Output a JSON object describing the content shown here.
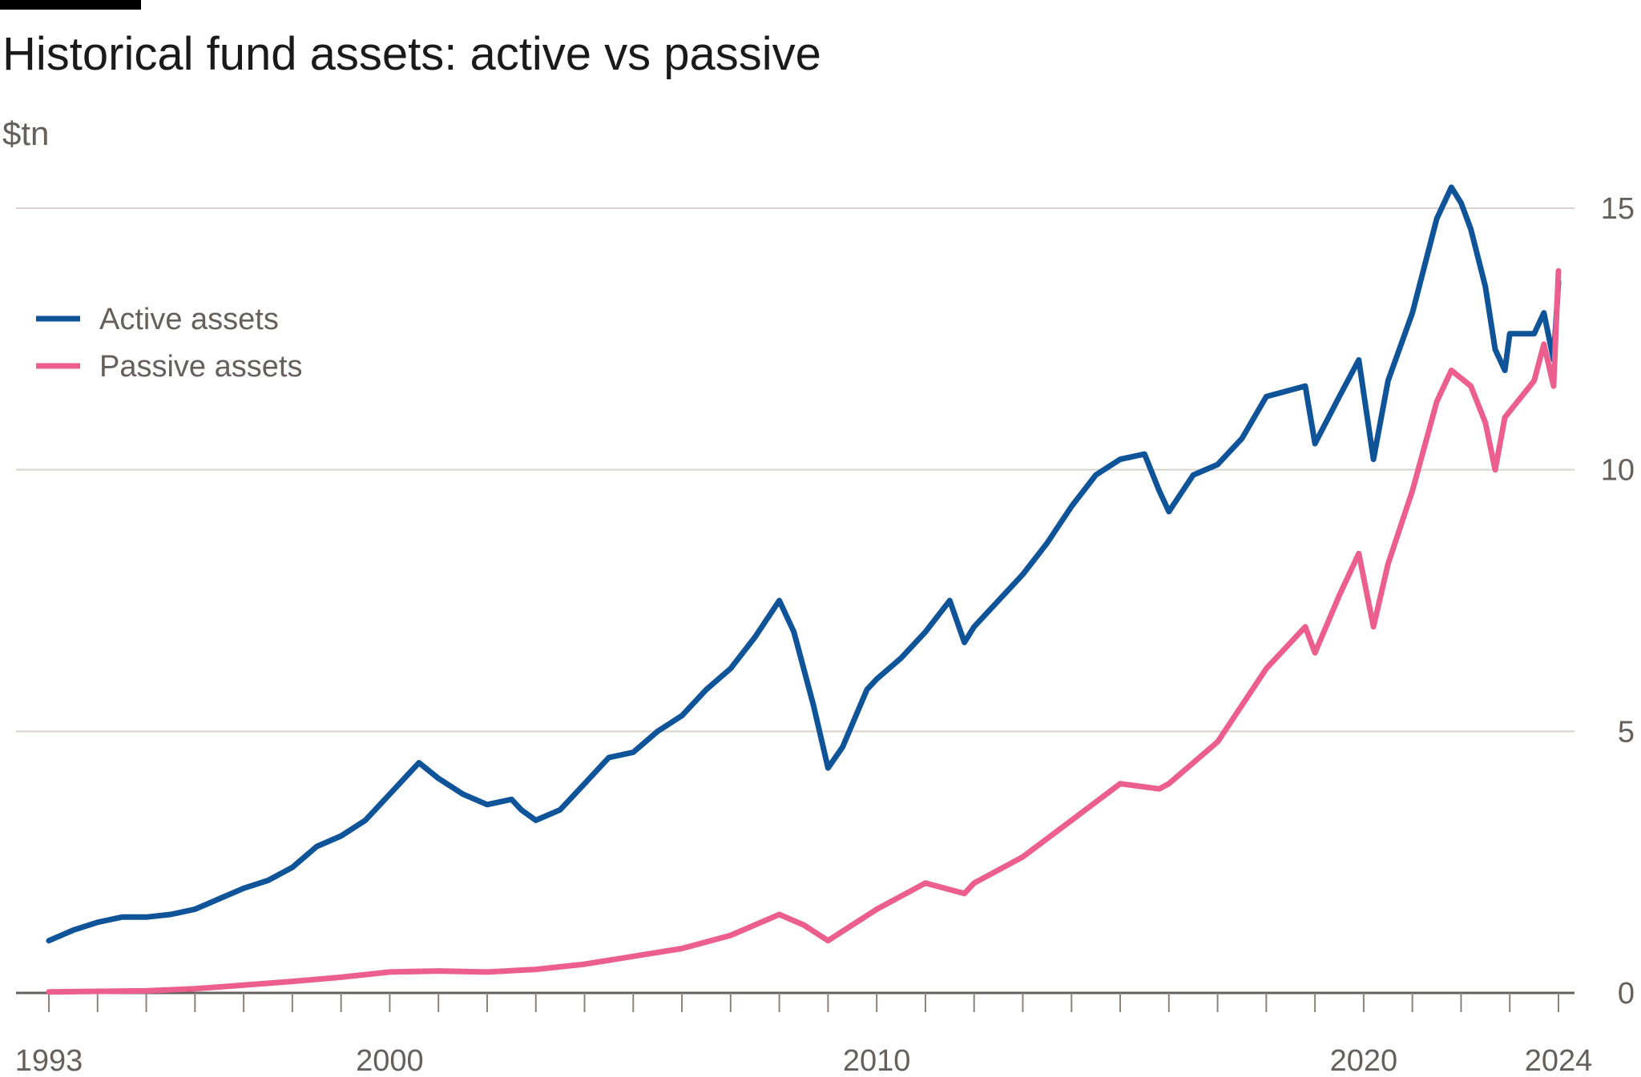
{
  "chart_data": {
    "type": "line",
    "title": "Historical fund assets: active vs passive",
    "ylabel": "$tn",
    "xlim": [
      1993,
      2024
    ],
    "ylim": [
      0,
      15
    ],
    "x_ticks_labeled": [
      "1993",
      "2000",
      "2010",
      "2020",
      "2024"
    ],
    "y_ticks": [
      0,
      5,
      10,
      15
    ],
    "grid": "horizontal",
    "legend_position": "top-left",
    "series": [
      {
        "name": "Active assets",
        "color": "#0f5499",
        "points": [
          [
            1993.0,
            1.0
          ],
          [
            1993.5,
            1.2
          ],
          [
            1994.0,
            1.35
          ],
          [
            1994.5,
            1.45
          ],
          [
            1995.0,
            1.45
          ],
          [
            1995.5,
            1.5
          ],
          [
            1996.0,
            1.6
          ],
          [
            1996.5,
            1.8
          ],
          [
            1997.0,
            2.0
          ],
          [
            1997.5,
            2.15
          ],
          [
            1998.0,
            2.4
          ],
          [
            1998.5,
            2.8
          ],
          [
            1999.0,
            3.0
          ],
          [
            1999.5,
            3.3
          ],
          [
            2000.0,
            3.8
          ],
          [
            2000.6,
            4.4
          ],
          [
            2001.0,
            4.1
          ],
          [
            2001.5,
            3.8
          ],
          [
            2002.0,
            3.6
          ],
          [
            2002.5,
            3.7
          ],
          [
            2002.7,
            3.5
          ],
          [
            2003.0,
            3.3
          ],
          [
            2003.5,
            3.5
          ],
          [
            2004.0,
            4.0
          ],
          [
            2004.5,
            4.5
          ],
          [
            2005.0,
            4.6
          ],
          [
            2005.5,
            5.0
          ],
          [
            2006.0,
            5.3
          ],
          [
            2006.5,
            5.8
          ],
          [
            2007.0,
            6.2
          ],
          [
            2007.5,
            6.8
          ],
          [
            2008.0,
            7.5
          ],
          [
            2008.3,
            6.9
          ],
          [
            2008.7,
            5.5
          ],
          [
            2009.0,
            4.3
          ],
          [
            2009.3,
            4.7
          ],
          [
            2009.8,
            5.8
          ],
          [
            2010.0,
            6.0
          ],
          [
            2010.5,
            6.4
          ],
          [
            2011.0,
            6.9
          ],
          [
            2011.5,
            7.5
          ],
          [
            2011.8,
            6.7
          ],
          [
            2012.0,
            7.0
          ],
          [
            2012.5,
            7.5
          ],
          [
            2013.0,
            8.0
          ],
          [
            2013.5,
            8.6
          ],
          [
            2014.0,
            9.3
          ],
          [
            2014.5,
            9.9
          ],
          [
            2015.0,
            10.2
          ],
          [
            2015.5,
            10.3
          ],
          [
            2015.8,
            9.6
          ],
          [
            2016.0,
            9.2
          ],
          [
            2016.5,
            9.9
          ],
          [
            2017.0,
            10.1
          ],
          [
            2017.5,
            10.6
          ],
          [
            2018.0,
            11.4
          ],
          [
            2018.8,
            11.6
          ],
          [
            2019.0,
            10.5
          ],
          [
            2019.5,
            11.4
          ],
          [
            2019.9,
            12.1
          ],
          [
            2020.2,
            10.2
          ],
          [
            2020.5,
            11.7
          ],
          [
            2021.0,
            13.0
          ],
          [
            2021.5,
            14.8
          ],
          [
            2021.8,
            15.4
          ],
          [
            2022.0,
            15.1
          ],
          [
            2022.2,
            14.6
          ],
          [
            2022.5,
            13.5
          ],
          [
            2022.7,
            12.3
          ],
          [
            2022.9,
            11.9
          ],
          [
            2023.0,
            12.6
          ],
          [
            2023.5,
            12.6
          ],
          [
            2023.7,
            13.0
          ],
          [
            2023.9,
            12.1
          ],
          [
            2024.0,
            13.6
          ]
        ]
      },
      {
        "name": "Passive assets",
        "color": "#eb5e8d",
        "points": [
          [
            1993.0,
            0.02
          ],
          [
            1994.0,
            0.03
          ],
          [
            1995.0,
            0.04
          ],
          [
            1996.0,
            0.08
          ],
          [
            1997.0,
            0.15
          ],
          [
            1998.0,
            0.22
          ],
          [
            1999.0,
            0.3
          ],
          [
            2000.0,
            0.4
          ],
          [
            2001.0,
            0.42
          ],
          [
            2002.0,
            0.4
          ],
          [
            2003.0,
            0.45
          ],
          [
            2004.0,
            0.55
          ],
          [
            2005.0,
            0.7
          ],
          [
            2006.0,
            0.85
          ],
          [
            2007.0,
            1.1
          ],
          [
            2008.0,
            1.5
          ],
          [
            2008.5,
            1.3
          ],
          [
            2009.0,
            1.0
          ],
          [
            2009.5,
            1.3
          ],
          [
            2010.0,
            1.6
          ],
          [
            2011.0,
            2.1
          ],
          [
            2011.8,
            1.9
          ],
          [
            2012.0,
            2.1
          ],
          [
            2013.0,
            2.6
          ],
          [
            2014.0,
            3.3
          ],
          [
            2015.0,
            4.0
          ],
          [
            2015.8,
            3.9
          ],
          [
            2016.0,
            4.0
          ],
          [
            2017.0,
            4.8
          ],
          [
            2018.0,
            6.2
          ],
          [
            2018.8,
            7.0
          ],
          [
            2019.0,
            6.5
          ],
          [
            2019.5,
            7.6
          ],
          [
            2019.9,
            8.4
          ],
          [
            2020.2,
            7.0
          ],
          [
            2020.5,
            8.2
          ],
          [
            2021.0,
            9.6
          ],
          [
            2021.5,
            11.3
          ],
          [
            2021.8,
            11.9
          ],
          [
            2022.2,
            11.6
          ],
          [
            2022.5,
            10.9
          ],
          [
            2022.7,
            10.0
          ],
          [
            2022.9,
            11.0
          ],
          [
            2023.5,
            11.7
          ],
          [
            2023.7,
            12.4
          ],
          [
            2023.9,
            11.6
          ],
          [
            2024.0,
            13.8
          ]
        ]
      }
    ]
  }
}
